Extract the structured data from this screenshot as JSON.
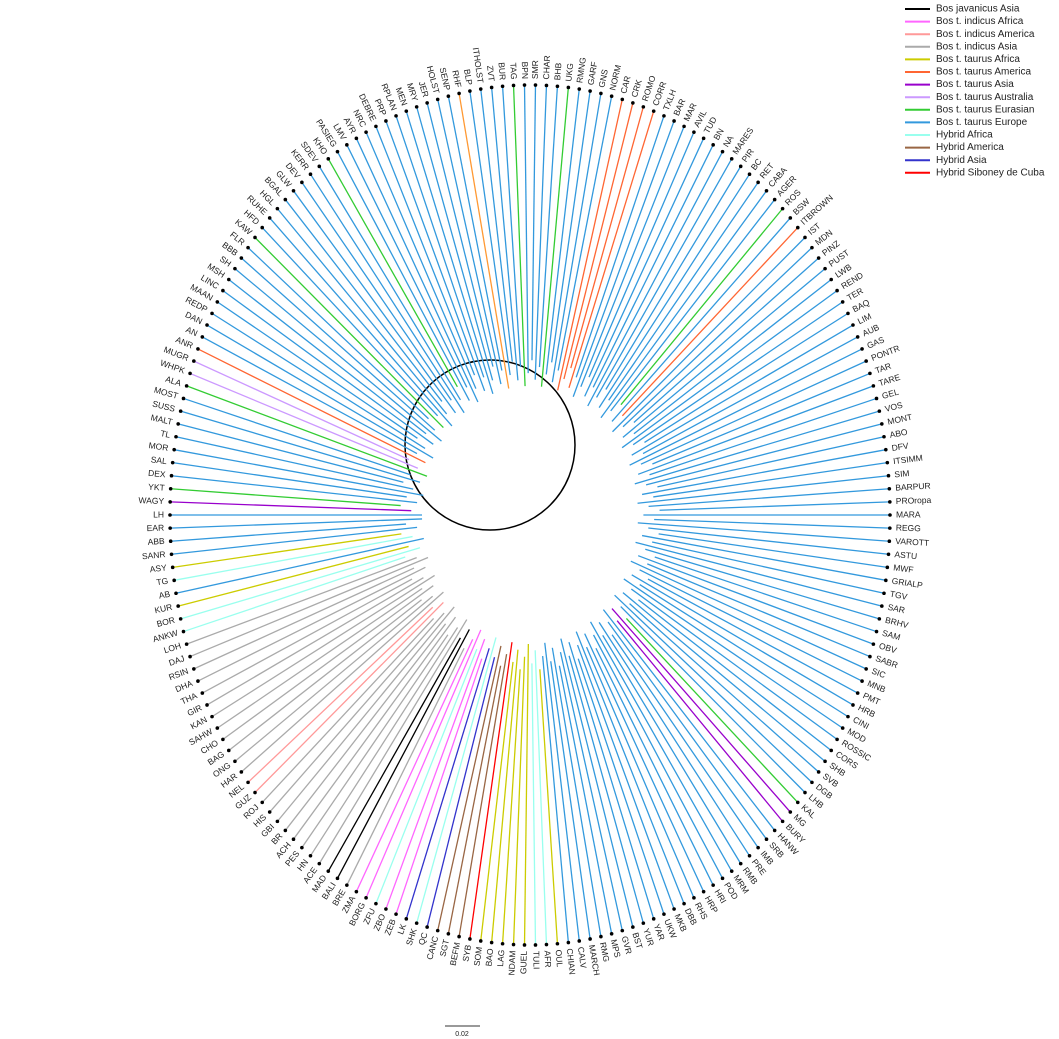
{
  "legend": [
    {
      "label": "Bos javanicus Asia",
      "color": "#000000"
    },
    {
      "label": "Bos t. indicus Africa",
      "color": "#ff66ff"
    },
    {
      "label": "Bos t. indicus America",
      "color": "#ff9999"
    },
    {
      "label": "Bos t. indicus Asia",
      "color": "#aaaaaa"
    },
    {
      "label": "Bos t. taurus Africa",
      "color": "#cccc00"
    },
    {
      "label": "Bos t. taurus America",
      "color": "#ff6633"
    },
    {
      "label": "Bos t. taurus Asia",
      "color": "#9900cc"
    },
    {
      "label": "Bos t. taurus Australia",
      "color": "#cc99ff"
    },
    {
      "label": "Bos t. taurus Eurasian",
      "color": "#33cc33"
    },
    {
      "label": "Bos t. taurus Europe",
      "color": "#3399dd"
    },
    {
      "label": "Hybrid Africa",
      "color": "#99ffee"
    },
    {
      "label": "Hybrid America",
      "color": "#996644"
    },
    {
      "label": "Hybrid Asia",
      "color": "#3333cc"
    },
    {
      "label": "Hybrid Siboney de Cuba",
      "color": "#ff0000"
    }
  ],
  "scale_bar": "0.02",
  "leaves": [
    {
      "label": "LH",
      "color": "#3399dd"
    },
    {
      "label": "WAGY",
      "color": "#9900cc"
    },
    {
      "label": "YKT",
      "color": "#33cc33"
    },
    {
      "label": "DEX",
      "color": "#3399dd"
    },
    {
      "label": "SAL",
      "color": "#3399dd"
    },
    {
      "label": "MOR",
      "color": "#3399dd"
    },
    {
      "label": "TL",
      "color": "#3399dd"
    },
    {
      "label": "MALT",
      "color": "#3399dd"
    },
    {
      "label": "SUSS",
      "color": "#3399dd"
    },
    {
      "label": "MOST",
      "color": "#3399dd"
    },
    {
      "label": "ALA",
      "color": "#33cc33"
    },
    {
      "label": "WHPK",
      "color": "#cc99ff"
    },
    {
      "label": "MUGR",
      "color": "#cc99ff"
    },
    {
      "label": "ANR",
      "color": "#ff6633"
    },
    {
      "label": "AN",
      "color": "#3399dd"
    },
    {
      "label": "DAN",
      "color": "#3399dd"
    },
    {
      "label": "REDP",
      "color": "#3399dd"
    },
    {
      "label": "MAAN",
      "color": "#3399dd"
    },
    {
      "label": "LINC",
      "color": "#3399dd"
    },
    {
      "label": "MSH",
      "color": "#3399dd"
    },
    {
      "label": "SH",
      "color": "#3399dd"
    },
    {
      "label": "BBB",
      "color": "#3399dd"
    },
    {
      "label": "FLR",
      "color": "#3399dd"
    },
    {
      "label": "KAW",
      "color": "#33cc33"
    },
    {
      "label": "HFD",
      "color": "#3399dd"
    },
    {
      "label": "RUHE",
      "color": "#3399dd"
    },
    {
      "label": "HGL",
      "color": "#3399dd"
    },
    {
      "label": "BGAL",
      "color": "#3399dd"
    },
    {
      "label": "GLW",
      "color": "#3399dd"
    },
    {
      "label": "DEV",
      "color": "#3399dd"
    },
    {
      "label": "KERR",
      "color": "#3399dd"
    },
    {
      "label": "SDEV",
      "color": "#3399dd"
    },
    {
      "label": "KHO",
      "color": "#33cc33"
    },
    {
      "label": "PASIEG",
      "color": "#3399dd"
    },
    {
      "label": "LMV",
      "color": "#3399dd"
    },
    {
      "label": "AYR",
      "color": "#3399dd"
    },
    {
      "label": "NRC",
      "color": "#3399dd"
    },
    {
      "label": "DEBRE",
      "color": "#3399dd"
    },
    {
      "label": "PRP",
      "color": "#3399dd"
    },
    {
      "label": "RPLAN",
      "color": "#3399dd"
    },
    {
      "label": "MEN",
      "color": "#3399dd"
    },
    {
      "label": "MRY",
      "color": "#3399dd"
    },
    {
      "label": "JER",
      "color": "#3399dd"
    },
    {
      "label": "HOLST",
      "color": "#3399dd"
    },
    {
      "label": "SENP",
      "color": "#3399dd"
    },
    {
      "label": "RHF",
      "color": "#ff9933"
    },
    {
      "label": "BLP",
      "color": "#3399dd"
    },
    {
      "label": "ITHOLST",
      "color": "#3399dd"
    },
    {
      "label": "ZVT",
      "color": "#3399dd"
    },
    {
      "label": "BUR",
      "color": "#3399dd"
    },
    {
      "label": "TAG",
      "color": "#33cc33"
    },
    {
      "label": "BPN",
      "color": "#3399dd"
    },
    {
      "label": "SMR",
      "color": "#3399dd"
    },
    {
      "label": "CHAR",
      "color": "#3399dd"
    },
    {
      "label": "BHB",
      "color": "#3399dd"
    },
    {
      "label": "UKG",
      "color": "#33cc33"
    },
    {
      "label": "RMNG",
      "color": "#3399dd"
    },
    {
      "label": "GARF",
      "color": "#3399dd"
    },
    {
      "label": "GNS",
      "color": "#3399dd"
    },
    {
      "label": "NORM",
      "color": "#3399dd"
    },
    {
      "label": "CAR",
      "color": "#ff6633"
    },
    {
      "label": "CRK",
      "color": "#ff6633"
    },
    {
      "label": "ROMO",
      "color": "#ff6633"
    },
    {
      "label": "CORR",
      "color": "#ff6633"
    },
    {
      "label": "TXLH",
      "color": "#3399dd"
    },
    {
      "label": "BAR",
      "color": "#3399dd"
    },
    {
      "label": "MAR",
      "color": "#3399dd"
    },
    {
      "label": "AVIL",
      "color": "#3399dd"
    },
    {
      "label": "TUD",
      "color": "#3399dd"
    },
    {
      "label": "BN",
      "color": "#3399dd"
    },
    {
      "label": "NA",
      "color": "#3399dd"
    },
    {
      "label": "MARES",
      "color": "#3399dd"
    },
    {
      "label": "PIR",
      "color": "#3399dd"
    },
    {
      "label": "BC",
      "color": "#3399dd"
    },
    {
      "label": "RET",
      "color": "#3399dd"
    },
    {
      "label": "CABA",
      "color": "#3399dd"
    },
    {
      "label": "AGER",
      "color": "#3399dd"
    },
    {
      "label": "ROS",
      "color": "#33cc33"
    },
    {
      "label": "BSW",
      "color": "#3399dd"
    },
    {
      "label": "ITBROWN",
      "color": "#ff6633"
    },
    {
      "label": "IST",
      "color": "#3399dd"
    },
    {
      "label": "MDN",
      "color": "#3399dd"
    },
    {
      "label": "PINZ",
      "color": "#3399dd"
    },
    {
      "label": "PUST",
      "color": "#3399dd"
    },
    {
      "label": "LWB",
      "color": "#3399dd"
    },
    {
      "label": "REND",
      "color": "#3399dd"
    },
    {
      "label": "TER",
      "color": "#3399dd"
    },
    {
      "label": "BAQ",
      "color": "#3399dd"
    },
    {
      "label": "LIM",
      "color": "#3399dd"
    },
    {
      "label": "AUB",
      "color": "#3399dd"
    },
    {
      "label": "GAS",
      "color": "#3399dd"
    },
    {
      "label": "PONTR",
      "color": "#3399dd"
    },
    {
      "label": "TAR",
      "color": "#3399dd"
    },
    {
      "label": "TARE",
      "color": "#3399dd"
    },
    {
      "label": "GEL",
      "color": "#3399dd"
    },
    {
      "label": "VOS",
      "color": "#3399dd"
    },
    {
      "label": "MONT",
      "color": "#3399dd"
    },
    {
      "label": "ABO",
      "color": "#3399dd"
    },
    {
      "label": "DFV",
      "color": "#3399dd"
    },
    {
      "label": "ITSIMM",
      "color": "#3399dd"
    },
    {
      "label": "SIM",
      "color": "#3399dd"
    },
    {
      "label": "BARPUR",
      "color": "#3399dd"
    },
    {
      "label": "PROropa",
      "color": "#3399dd"
    },
    {
      "label": "MARA",
      "color": "#3399dd"
    },
    {
      "label": "REGG",
      "color": "#3399dd"
    },
    {
      "label": "VAROTT",
      "color": "#3399dd"
    },
    {
      "label": "ASTU",
      "color": "#3399dd"
    },
    {
      "label": "MWF",
      "color": "#3399dd"
    },
    {
      "label": "GRIALP",
      "color": "#3399dd"
    },
    {
      "label": "TGV",
      "color": "#3399dd"
    },
    {
      "label": "SAR",
      "color": "#3399dd"
    },
    {
      "label": "BRHV",
      "color": "#3399dd"
    },
    {
      "label": "SAM",
      "color": "#3399dd"
    },
    {
      "label": "OBV",
      "color": "#3399dd"
    },
    {
      "label": "SABR",
      "color": "#3399dd"
    },
    {
      "label": "SIC",
      "color": "#3399dd"
    },
    {
      "label": "MNB",
      "color": "#3399dd"
    },
    {
      "label": "PMT",
      "color": "#3399dd"
    },
    {
      "label": "HRB",
      "color": "#3399dd"
    },
    {
      "label": "CINI",
      "color": "#3399dd"
    },
    {
      "label": "MOD",
      "color": "#3399dd"
    },
    {
      "label": "ROSSIC",
      "color": "#3399dd"
    },
    {
      "label": "CORS",
      "color": "#3399dd"
    },
    {
      "label": "SHB",
      "color": "#3399dd"
    },
    {
      "label": "SVB",
      "color": "#3399dd"
    },
    {
      "label": "DGB",
      "color": "#3399dd"
    },
    {
      "label": "LHB",
      "color": "#3399dd"
    },
    {
      "label": "KAL",
      "color": "#33cc33"
    },
    {
      "label": "MG",
      "color": "#9900cc"
    },
    {
      "label": "BURY",
      "color": "#9900cc"
    },
    {
      "label": "HANW",
      "color": "#3399dd"
    },
    {
      "label": "SRB",
      "color": "#3399dd"
    },
    {
      "label": "IMB",
      "color": "#3399dd"
    },
    {
      "label": "PRE",
      "color": "#3399dd"
    },
    {
      "label": "RMB",
      "color": "#3399dd"
    },
    {
      "label": "MRM",
      "color": "#3399dd"
    },
    {
      "label": "POD",
      "color": "#3399dd"
    },
    {
      "label": "HRI",
      "color": "#3399dd"
    },
    {
      "label": "HRP",
      "color": "#3399dd"
    },
    {
      "label": "RHS",
      "color": "#3399dd"
    },
    {
      "label": "DBB",
      "color": "#3399dd"
    },
    {
      "label": "MKB",
      "color": "#3399dd"
    },
    {
      "label": "UKW",
      "color": "#3399dd"
    },
    {
      "label": "YAR",
      "color": "#3399dd"
    },
    {
      "label": "YUR",
      "color": "#3399dd"
    },
    {
      "label": "BST",
      "color": "#3399dd"
    },
    {
      "label": "GVR",
      "color": "#3399dd"
    },
    {
      "label": "MPS",
      "color": "#3399dd"
    },
    {
      "label": "RMG",
      "color": "#3399dd"
    },
    {
      "label": "MARCH",
      "color": "#3399dd"
    },
    {
      "label": "CALV",
      "color": "#3399dd"
    },
    {
      "label": "CHIAN",
      "color": "#3399dd"
    },
    {
      "label": "OUL",
      "color": "#cccc00"
    },
    {
      "label": "AFR",
      "color": "#99ffee"
    },
    {
      "label": "TULI",
      "color": "#99ffee"
    },
    {
      "label": "GUEL",
      "color": "#cccc00"
    },
    {
      "label": "NDAM",
      "color": "#cccc00"
    },
    {
      "label": "LAG",
      "color": "#cccc00"
    },
    {
      "label": "BAO",
      "color": "#cccc00"
    },
    {
      "label": "SOM",
      "color": "#cccc00"
    },
    {
      "label": "SYB",
      "color": "#ff0000"
    },
    {
      "label": "BEFM",
      "color": "#996644"
    },
    {
      "label": "SGT",
      "color": "#996644"
    },
    {
      "label": "CANC",
      "color": "#996644"
    },
    {
      "label": "QC",
      "color": "#3333cc"
    },
    {
      "label": "SHK",
      "color": "#99ffee"
    },
    {
      "label": "LK",
      "color": "#3333cc"
    },
    {
      "label": "ZEB",
      "color": "#ff66ff"
    },
    {
      "label": "ZBO",
      "color": "#ff66ff"
    },
    {
      "label": "ZFU",
      "color": "#99ffee"
    },
    {
      "label": "BORG",
      "color": "#ff66ff"
    },
    {
      "label": "ZMA",
      "color": "#ff66ff"
    },
    {
      "label": "BRE",
      "color": "#aaaaaa"
    },
    {
      "label": "BALI",
      "color": "#000000"
    },
    {
      "label": "MAD",
      "color": "#000000"
    },
    {
      "label": "ACE",
      "color": "#aaaaaa"
    },
    {
      "label": "HN",
      "color": "#aaaaaa"
    },
    {
      "label": "PES",
      "color": "#aaaaaa"
    },
    {
      "label": "ACH",
      "color": "#aaaaaa"
    },
    {
      "label": "BR",
      "color": "#aaaaaa"
    },
    {
      "label": "GBI",
      "color": "#aaaaaa"
    },
    {
      "label": "HIS",
      "color": "#aaaaaa"
    },
    {
      "label": "ROJ",
      "color": "#aaaaaa"
    },
    {
      "label": "GUZ",
      "color": "#ff9999"
    },
    {
      "label": "NEL",
      "color": "#ff9999"
    },
    {
      "label": "HAR",
      "color": "#aaaaaa"
    },
    {
      "label": "ONG",
      "color": "#aaaaaa"
    },
    {
      "label": "BAG",
      "color": "#aaaaaa"
    },
    {
      "label": "CHO",
      "color": "#aaaaaa"
    },
    {
      "label": "SAHW",
      "color": "#aaaaaa"
    },
    {
      "label": "KAN",
      "color": "#aaaaaa"
    },
    {
      "label": "GIR",
      "color": "#aaaaaa"
    },
    {
      "label": "THA",
      "color": "#aaaaaa"
    },
    {
      "label": "DHA",
      "color": "#aaaaaa"
    },
    {
      "label": "RSIN",
      "color": "#aaaaaa"
    },
    {
      "label": "DAJ",
      "color": "#aaaaaa"
    },
    {
      "label": "LOH",
      "color": "#aaaaaa"
    },
    {
      "label": "ANKW",
      "color": "#99ffee"
    },
    {
      "label": "BOR",
      "color": "#99ffee"
    },
    {
      "label": "KUR",
      "color": "#cccc00"
    },
    {
      "label": "AB",
      "color": "#3399dd"
    },
    {
      "label": "TG",
      "color": "#99ffee"
    },
    {
      "label": "ASY",
      "color": "#cccc00"
    },
    {
      "label": "SANR",
      "color": "#3399dd"
    },
    {
      "label": "ABB",
      "color": "#3399dd"
    },
    {
      "label": "EAR",
      "color": "#3399dd"
    }
  ]
}
